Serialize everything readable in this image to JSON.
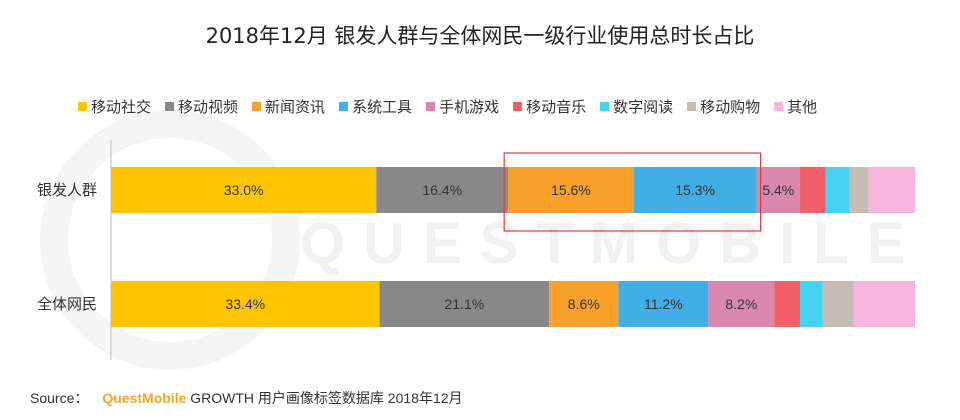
{
  "watermark": "QUESTMOBILE",
  "source": {
    "label": "Source：",
    "brand": "QuestMobile",
    "text": " GROWTH 用户画像标签数据库 2018年12月"
  },
  "chart_data": {
    "type": "bar",
    "orientation": "horizontal",
    "stacked": true,
    "title": "2018年12月 银发人群与全体网民一级行业使用总时长占比",
    "categories": [
      "银发人群",
      "全体网民"
    ],
    "xlim": [
      0,
      100
    ],
    "legend_position": "top",
    "highlight": {
      "category": "银发人群",
      "series": [
        "新闻资讯",
        "系统工具"
      ],
      "color": "#e03c3c"
    },
    "series": [
      {
        "name": "移动社交",
        "color": "#ffc600",
        "values": [
          33.0,
          33.4
        ],
        "labels": [
          "33.0%",
          "33.4%"
        ]
      },
      {
        "name": "移动视频",
        "color": "#888888",
        "values": [
          16.4,
          21.1
        ],
        "labels": [
          "16.4%",
          "21.1%"
        ]
      },
      {
        "name": "新闻资讯",
        "color": "#f7a12a",
        "values": [
          15.6,
          8.6
        ],
        "labels": [
          "15.6%",
          "8.6%"
        ]
      },
      {
        "name": "系统工具",
        "color": "#42aee6",
        "values": [
          15.3,
          11.2
        ],
        "labels": [
          "15.3%",
          "11.2%"
        ]
      },
      {
        "name": "手机游戏",
        "color": "#d888ad",
        "values": [
          5.4,
          8.2
        ],
        "labels": [
          "5.4%",
          "8.2%"
        ]
      },
      {
        "name": "移动音乐",
        "color": "#f2606a",
        "values": [
          3.2,
          3.2
        ],
        "labels": [
          "",
          ""
        ]
      },
      {
        "name": "数字阅读",
        "color": "#45d3f3",
        "values": [
          3.0,
          2.8
        ],
        "labels": [
          "",
          ""
        ]
      },
      {
        "name": "移动购物",
        "color": "#c4bdb5",
        "values": [
          2.3,
          3.9
        ],
        "labels": [
          "",
          ""
        ]
      },
      {
        "name": "其他",
        "color": "#f8b6dc",
        "values": [
          5.8,
          7.6
        ],
        "labels": [
          "",
          ""
        ]
      }
    ]
  }
}
